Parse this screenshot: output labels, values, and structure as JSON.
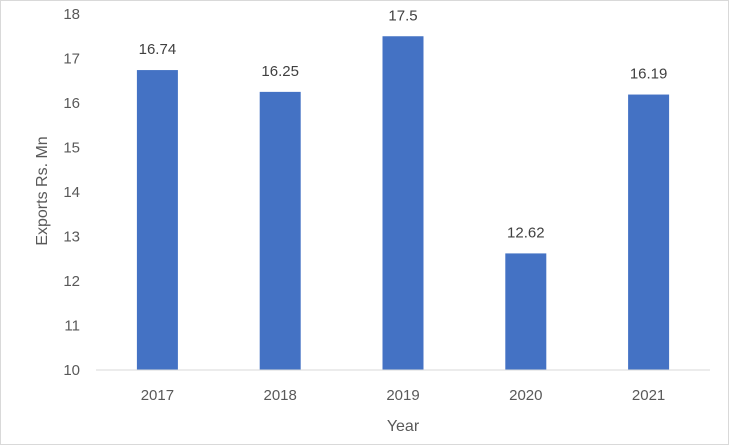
{
  "chart_data": {
    "type": "bar",
    "categories": [
      "2017",
      "2018",
      "2019",
      "2020",
      "2021"
    ],
    "values": [
      16.74,
      16.25,
      17.5,
      12.62,
      16.19
    ],
    "data_labels": [
      "16.74",
      "16.25",
      "17.5",
      "12.62",
      "16.19"
    ],
    "xlabel": "Year",
    "ylabel": "Exports Rs. Mn",
    "ylim": [
      10,
      18
    ],
    "yticks": [
      "10",
      "11",
      "12",
      "13",
      "14",
      "15",
      "16",
      "17",
      "18"
    ],
    "grid": false,
    "bar_color": "#4472c4",
    "legend": "none"
  }
}
